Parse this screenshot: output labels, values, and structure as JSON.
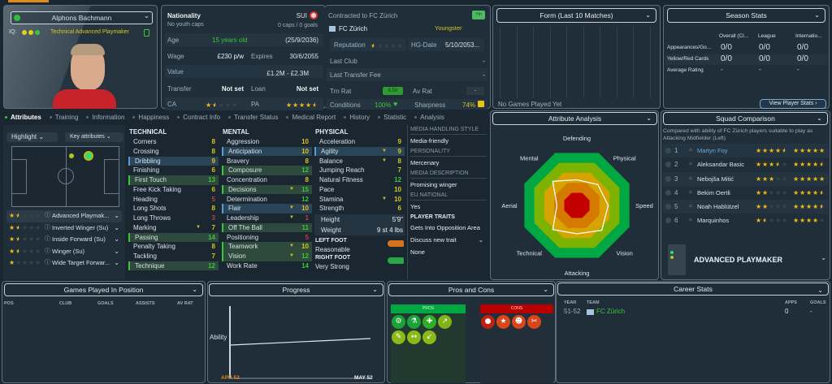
{
  "player": {
    "name": "Alphons Bachmann",
    "iq_label": "IQ:",
    "role_line": "Technical Advanced Playmaker"
  },
  "info": {
    "nationality_label": "Nationality",
    "nationality": "SUI",
    "youth_caps": "No youth caps",
    "caps": "0 caps / 0 goals",
    "age_label": "Age",
    "age": "15 years old",
    "dob": "(25/9/2036)",
    "wage_label": "Wage",
    "wage": "£230 p/w",
    "expires_label": "Expires",
    "expires": "30/6/2055",
    "value_label": "Value",
    "value": "£1.2M - £2.3M",
    "transfer_label": "Transfer",
    "transfer": "Not set",
    "loan_label": "Loan",
    "loan": "Not set",
    "ca_label": "CA",
    "ca_stars": 1.5,
    "pa_label": "PA",
    "pa_stars": 4.5
  },
  "contract": {
    "title": "Contracted to FC Zürich",
    "club": "FC Zürich",
    "badge": "Yth",
    "status": "Youngster",
    "reputation_label": "Reputation",
    "reputation_stars": 0.5,
    "hg_label": "HG-Date",
    "hg": "5/10/2053...",
    "last_club_label": "Last Club",
    "last_club": "-",
    "fee_label": "Last Transfer Fee",
    "fee": "-",
    "trn_label": "Trn Rat",
    "trn": "6.50",
    "av_label": "Av Rat",
    "av": "-",
    "cond_label": "Conditions",
    "cond": "100%",
    "sharp_label": "Sharpness",
    "sharp": "74%"
  },
  "form": {
    "title": "Form (Last 10 Matches)",
    "empty": "No Games Played Yet"
  },
  "season": {
    "title": "Season Stats",
    "cols": [
      "Overall (Cl...",
      "League",
      "Internatio..."
    ],
    "rows": [
      {
        "label": "Appearances/Go...",
        "vals": [
          "0/0",
          "0/0",
          "0/0"
        ]
      },
      {
        "label": "Yellow/Red Cards",
        "vals": [
          "0/0",
          "0/0",
          "0/0"
        ]
      },
      {
        "label": "Average Rating",
        "vals": [
          "-",
          "-",
          "-"
        ]
      }
    ],
    "button": "View Player Stats ›"
  },
  "tabs": [
    "Attributes",
    "Training",
    "Information",
    "Happiness",
    "Contract Info",
    "Transfer Status",
    "Medical Report",
    "History",
    "Statistic",
    "Analysis"
  ],
  "left": {
    "highlight": "Highlight",
    "key_attrs": "Key attributes",
    "roles": [
      {
        "name": "Advanced Playmak...",
        "stars": 1.5
      },
      {
        "name": "Inverted Winger (Su)",
        "stars": 1.5
      },
      {
        "name": "Inside Forward (Su)",
        "stars": 1.5
      },
      {
        "name": "Winger (Su)",
        "stars": 1.5
      },
      {
        "name": "Wide Target Forwar...",
        "stars": 1
      }
    ]
  },
  "technical": {
    "title": "TECHNICAL",
    "items": [
      {
        "n": "Corners",
        "v": 8
      },
      {
        "n": "Crossing",
        "v": 8
      },
      {
        "n": "Dribbling",
        "v": 9,
        "h": "b"
      },
      {
        "n": "Finishing",
        "v": 6
      },
      {
        "n": "First Touch",
        "v": 13,
        "h": "g"
      },
      {
        "n": "Free Kick Taking",
        "v": 6
      },
      {
        "n": "Heading",
        "v": 5
      },
      {
        "n": "Long Shots",
        "v": 8
      },
      {
        "n": "Long Throws",
        "v": 3
      },
      {
        "n": "Marking",
        "v": 7,
        "a": 1
      },
      {
        "n": "Passing",
        "v": 14,
        "h": "g"
      },
      {
        "n": "Penalty Taking",
        "v": 8
      },
      {
        "n": "Tackling",
        "v": 7
      },
      {
        "n": "Technique",
        "v": 12,
        "h": "g"
      }
    ]
  },
  "mental": {
    "title": "MENTAL",
    "items": [
      {
        "n": "Aggression",
        "v": 10
      },
      {
        "n": "Anticipation",
        "v": 10,
        "h": "b"
      },
      {
        "n": "Bravery",
        "v": 8
      },
      {
        "n": "Composure",
        "v": 12,
        "h": "g"
      },
      {
        "n": "Concentration",
        "v": 8
      },
      {
        "n": "Decisions",
        "v": 15,
        "h": "g",
        "a": 1
      },
      {
        "n": "Determination",
        "v": 12
      },
      {
        "n": "Flair",
        "v": 10,
        "h": "b",
        "a": 1
      },
      {
        "n": "Leadership",
        "v": 1,
        "a": 1
      },
      {
        "n": "Off The Ball",
        "v": 11,
        "h": "g"
      },
      {
        "n": "Positioning",
        "v": 5
      },
      {
        "n": "Teamwork",
        "v": 10,
        "h": "g",
        "a": 1
      },
      {
        "n": "Vision",
        "v": 12,
        "h": "g",
        "a": 1
      },
      {
        "n": "Work Rate",
        "v": 14
      }
    ]
  },
  "physical": {
    "title": "PHYSICAL",
    "items": [
      {
        "n": "Acceleration",
        "v": 9
      },
      {
        "n": "Agility",
        "v": 9,
        "h": "b",
        "a": 1
      },
      {
        "n": "Balance",
        "v": 8,
        "a": 1
      },
      {
        "n": "Jumping Reach",
        "v": 7
      },
      {
        "n": "Natural Fitness",
        "v": 12
      },
      {
        "n": "Pace",
        "v": 10
      },
      {
        "n": "Stamina",
        "v": 10,
        "a": 1
      },
      {
        "n": "Strength",
        "v": 6
      }
    ],
    "height_label": "Height",
    "height": "5'9\"",
    "weight_label": "Weight",
    "weight": "9 st 4 lbs",
    "left_foot_label": "LEFT FOOT",
    "left_foot": "Reasonable",
    "right_foot_label": "RIGHT FOOT",
    "right_foot": "Very Strong"
  },
  "media": {
    "style_h": "MEDIA HANDLING STYLE",
    "style": "Media-friendly",
    "pers_h": "PERSONALITY",
    "pers": "Mercenary",
    "desc_h": "MEDIA DESCRIPTION",
    "desc": "Promising winger",
    "eu_h": "EU NATIONAL",
    "eu": "Yes",
    "traits_h": "PLAYER TRAITS",
    "trait": "Gets Into Opposition Area",
    "discuss": "Discuss new trait",
    "none": "None"
  },
  "analysis": {
    "title": "Attribute Analysis",
    "axes": [
      "Defending",
      "Physical",
      "Speed",
      "Vision",
      "Attacking",
      "Technical",
      "Aerial",
      "Mental"
    ],
    "values": [
      0.45,
      0.52,
      0.55,
      0.62,
      0.5,
      0.6,
      0.35,
      0.6
    ],
    "ring_colors": [
      "#00a844",
      "#7db300",
      "#d6a300",
      "#d47a00",
      "#c20000"
    ]
  },
  "squad": {
    "title": "Squad Comparison",
    "desc": "Compared with ability of FC Zürich players suitable to play as Attacking Midfielder (Left)",
    "players": [
      {
        "rank": "1",
        "name": "Martyn Foy",
        "ca": 4.5,
        "pa": 5,
        "self": true
      },
      {
        "rank": "2",
        "name": "Aleksandar Basic",
        "ca": 3.5,
        "pa": 4.5
      },
      {
        "rank": "3",
        "name": "Nebojša Mitić",
        "ca": 3,
        "pa": 5
      },
      {
        "rank": "4",
        "name": "Bekim Oertli",
        "ca": 2,
        "pa": 4.5
      },
      {
        "rank": "5",
        "name": "Noah Hablützel",
        "ca": 2,
        "pa": 4.5
      },
      {
        "rank": "6",
        "name": "Marquinhos",
        "ca": 1.5,
        "pa": 4
      }
    ],
    "role": "ADVANCED PLAYMAKER"
  },
  "games": {
    "title": "Games Played In Position",
    "cols": [
      "POS",
      "CLUB",
      "GOALS",
      "ASSISTS",
      "AV RAT"
    ]
  },
  "progress": {
    "title": "Progress",
    "ylabel": "Ability",
    "x_start": "APR 52",
    "x_end": "MAY 52"
  },
  "proscons": {
    "title": "Pros and Cons",
    "pros": "PROS",
    "cons": "CONS"
  },
  "career": {
    "title": "Career Stats",
    "cols": [
      "YEAR",
      "TEAM",
      "APPS",
      "GOALS"
    ],
    "rows": [
      {
        "year": "51-52",
        "team": "FC Zürich",
        "apps": "0",
        "goals": "-"
      }
    ]
  }
}
